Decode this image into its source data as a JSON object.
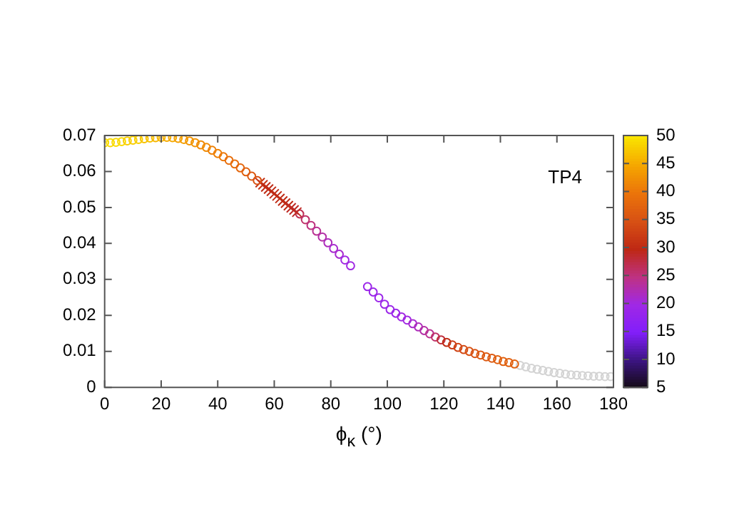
{
  "chart_data": {
    "type": "scatter",
    "xlabel": "ϕ$_{κ}$ (°)",
    "annotations": [
      "TP4"
    ],
    "xlim": [
      0,
      180
    ],
    "xticks": [
      0,
      20,
      40,
      60,
      80,
      100,
      120,
      140,
      160,
      180
    ],
    "ylim": [
      0,
      0.07
    ],
    "yticks": [
      0,
      0.01,
      0.02,
      0.03,
      0.04,
      0.05,
      0.06,
      0.07
    ],
    "clim": [
      5,
      50
    ],
    "cticks": [
      5,
      10,
      15,
      20,
      25,
      30,
      35,
      40,
      45,
      50
    ],
    "grid": false,
    "legend": false,
    "series": [
      {
        "marker": "circle",
        "x": [
          0,
          2,
          4,
          6,
          8,
          10,
          12,
          14,
          16,
          18,
          20,
          22,
          24,
          26,
          28,
          30,
          32,
          34,
          36,
          38,
          40,
          42,
          44,
          46,
          48,
          50,
          52,
          54
        ],
        "values": [
          0.068,
          0.068,
          0.0681,
          0.0683,
          0.0685,
          0.0687,
          0.0689,
          0.0691,
          0.0693,
          0.0694,
          0.0695,
          0.0695,
          0.0694,
          0.0692,
          0.0689,
          0.0685,
          0.068,
          0.0674,
          0.0667,
          0.0659,
          0.065,
          0.0641,
          0.0631,
          0.0621,
          0.061,
          0.0599,
          0.0587,
          0.0575
        ],
        "colors": [
          "#f9da00",
          "#f9da00",
          "#f9da00",
          "#f9da00",
          "#f8ce00",
          "#f8ce00",
          "#f8ce00",
          "#f7c200",
          "#f7c200",
          "#f6b600",
          "#f6b600",
          "#f5aa00",
          "#f5aa00",
          "#f49f01",
          "#f49f01",
          "#f29503",
          "#f29503",
          "#f08b05",
          "#f08b05",
          "#ee8107",
          "#ee8107",
          "#ec7709",
          "#e86e0b",
          "#e86e0b",
          "#e4670d",
          "#e0600f",
          "#dc5911",
          "#d85213"
        ]
      },
      {
        "marker": "cross",
        "x": [
          55,
          56,
          57,
          58,
          59,
          60,
          61,
          62,
          63,
          64,
          65,
          66,
          67,
          68
        ],
        "values": [
          0.0569,
          0.0563,
          0.0557,
          0.0551,
          0.0545,
          0.0538,
          0.0532,
          0.0525,
          0.0518,
          0.0512,
          0.0505,
          0.0499,
          0.0493,
          0.0487
        ],
        "colors": [
          "#c43214",
          "#c43214",
          "#bf2a14",
          "#bf2a14",
          "#bf2a14",
          "#bf2a14",
          "#bf2a14",
          "#bf2a14",
          "#bf2a14",
          "#bf2a14",
          "#bf2a14",
          "#be2a24",
          "#be2a24",
          "#be2a24"
        ]
      },
      {
        "marker": "circle",
        "x": [
          69,
          71,
          73,
          75,
          77,
          79,
          81,
          83,
          85,
          87
        ],
        "values": [
          0.0482,
          0.0466,
          0.045,
          0.0434,
          0.0418,
          0.0402,
          0.0386,
          0.037,
          0.0354,
          0.0338
        ],
        "colors": [
          "#be2e52",
          "#be3068",
          "#be327e",
          "#b93092",
          "#b32ea6",
          "#ad2cbb",
          "#a72acf",
          "#a72acf",
          "#a128e3",
          "#a128e3"
        ]
      },
      {
        "marker": "circle",
        "x": [
          93,
          95,
          97,
          99,
          101,
          103,
          105,
          107,
          109,
          111,
          113,
          115,
          117,
          119,
          121,
          123,
          125,
          127,
          129,
          131,
          133,
          135,
          137,
          139,
          141,
          143,
          145
        ],
        "values": [
          0.028,
          0.0265,
          0.0249,
          0.0231,
          0.0216,
          0.0206,
          0.0196,
          0.0187,
          0.0177,
          0.0168,
          0.0158,
          0.0149,
          0.014,
          0.0132,
          0.0125,
          0.0118,
          0.0111,
          0.0105,
          0.01,
          0.0094,
          0.009,
          0.0085,
          0.0081,
          0.0077,
          0.0072,
          0.0069,
          0.0065
        ],
        "colors": [
          "#9b26e9",
          "#9b26e9",
          "#9b26e9",
          "#9b26e9",
          "#9b26e9",
          "#9b26e9",
          "#a128e3",
          "#a128e3",
          "#a72acf",
          "#ad2cbb",
          "#b32ea6",
          "#b93092",
          "#be3068",
          "#be2c3a",
          "#bf2a14",
          "#c93a14",
          "#cf4214",
          "#d34a14",
          "#d85213",
          "#d85213",
          "#dc5911",
          "#dc5911",
          "#dc5911",
          "#e0600f",
          "#e0600f",
          "#e0600f",
          "#e0600f"
        ]
      },
      {
        "marker": "circle",
        "color": "#d3d3d3",
        "x": [
          147,
          149,
          151,
          153,
          155,
          157,
          159,
          161,
          163,
          165,
          167,
          169,
          171,
          173,
          175,
          177,
          179
        ],
        "values": [
          0.0061,
          0.0057,
          0.0053,
          0.005,
          0.0047,
          0.0044,
          0.0041,
          0.0039,
          0.0037,
          0.0035,
          0.0034,
          0.0033,
          0.0032,
          0.0031,
          0.0031,
          0.003,
          0.003
        ]
      }
    ]
  }
}
